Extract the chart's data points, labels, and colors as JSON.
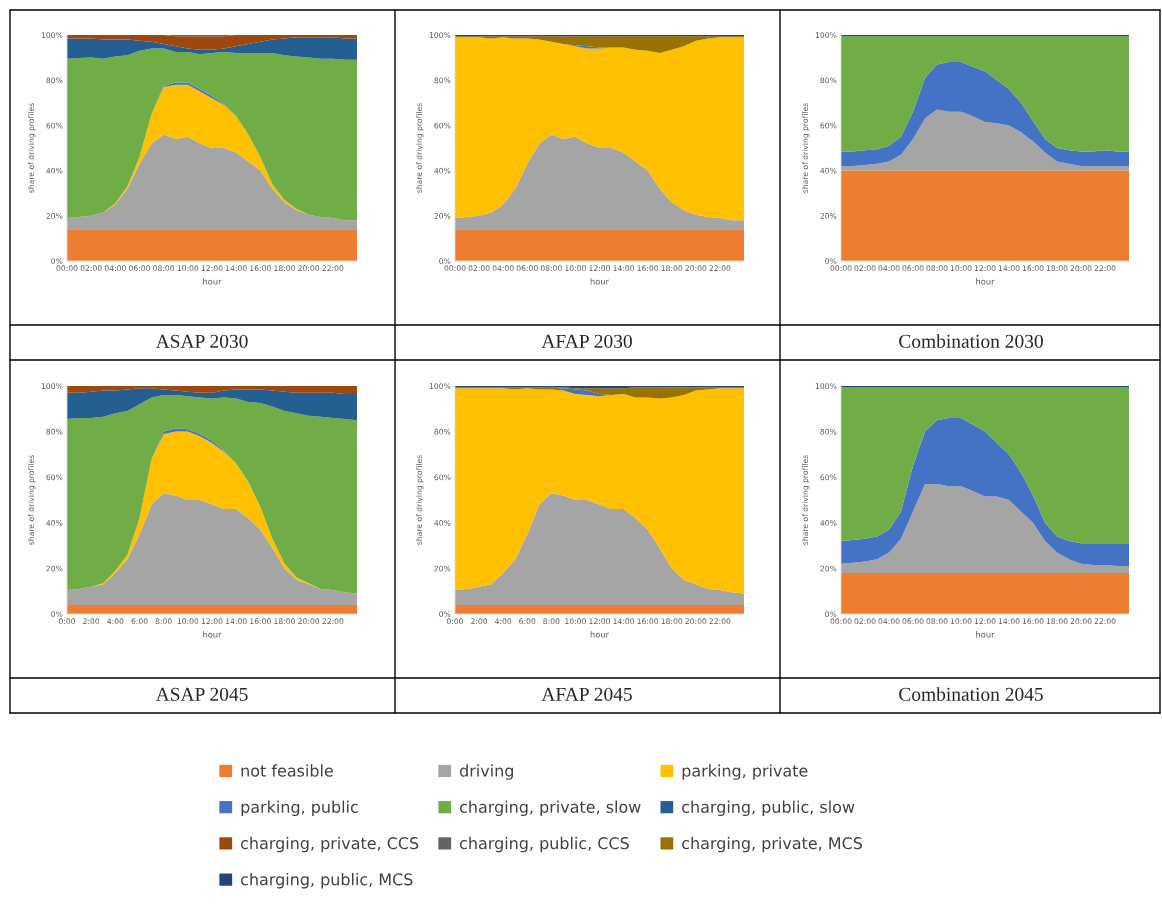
{
  "chart_data": [
    {
      "type": "area",
      "title": "ASAP 2030",
      "xlabel": "hour",
      "ylabel": "share of driving profiles",
      "stacked": true,
      "legend": "bottom",
      "x": [
        0,
        1,
        2,
        3,
        4,
        5,
        6,
        7,
        8,
        9,
        10,
        11,
        12,
        13,
        14,
        15,
        16,
        17,
        18,
        19,
        20,
        21,
        22,
        23,
        24
      ],
      "xlim": [
        0,
        24
      ],
      "xticks": [
        {
          "value": 0,
          "label": "00:00"
        },
        {
          "value": 2,
          "label": "02:00"
        },
        {
          "value": 4,
          "label": "04:00"
        },
        {
          "value": 6,
          "label": "06:00"
        },
        {
          "value": 8,
          "label": "08:00"
        },
        {
          "value": 10,
          "label": "10:00"
        },
        {
          "value": 12,
          "label": "12:00"
        },
        {
          "value": 14,
          "label": "14:00"
        },
        {
          "value": 16,
          "label": "16:00"
        },
        {
          "value": 18,
          "label": "18:00"
        },
        {
          "value": 20,
          "label": "20:00"
        },
        {
          "value": 22,
          "label": "22:00"
        }
      ],
      "ylim": [
        0,
        100
      ],
      "yticks": [
        {
          "value": 0,
          "label": "0%"
        },
        {
          "value": 20,
          "label": "20%"
        },
        {
          "value": 40,
          "label": "40%"
        },
        {
          "value": 60,
          "label": "60%"
        },
        {
          "value": 80,
          "label": "80%"
        },
        {
          "value": 100,
          "label": "100%"
        }
      ],
      "series": [
        {
          "name": "not feasible",
          "color": "#ed7d31",
          "values": [
            14,
            14,
            14,
            14,
            14,
            14,
            14,
            14,
            14,
            14,
            14,
            14,
            14,
            14,
            14,
            14,
            14,
            14,
            14,
            14,
            14,
            14,
            14,
            14,
            14
          ]
        },
        {
          "name": "driving",
          "color": "#a5a5a5",
          "values": [
            5,
            5.5,
            6,
            7.5,
            11,
            18,
            29,
            38,
            42,
            40,
            41,
            38,
            36,
            36,
            34,
            30,
            26,
            18,
            12,
            8.5,
            6.5,
            5.5,
            5,
            4,
            4
          ]
        },
        {
          "name": "parking, private",
          "color": "#ffc000",
          "values": [
            0,
            0,
            0,
            0,
            0.5,
            1,
            3,
            13,
            21,
            24,
            23,
            23,
            22,
            19,
            16,
            12,
            6,
            2,
            1,
            0.5,
            0,
            0,
            0,
            0,
            0
          ]
        },
        {
          "name": "parking, public",
          "color": "#4472c4",
          "values": [
            0,
            0,
            0,
            0,
            0,
            0,
            0,
            0,
            0.5,
            1,
            1,
            1,
            1,
            0.5,
            0,
            0,
            0,
            0,
            0,
            0,
            0,
            0,
            0,
            0,
            0
          ]
        },
        {
          "name": "charging, private, slow",
          "color": "#70ad47",
          "values": [
            70.5,
            70.3,
            70,
            68,
            65,
            58,
            47,
            29,
            16.5,
            13.5,
            13.5,
            15.5,
            19,
            23,
            28,
            36,
            46,
            58,
            64,
            67.5,
            69.5,
            70,
            70.5,
            71,
            71
          ]
        },
        {
          "name": "charging, public, slow",
          "color": "#255e91",
          "values": [
            9,
            8.7,
            8.5,
            8.5,
            7.5,
            7,
            4.5,
            3,
            2,
            2.5,
            1.5,
            2,
            1.5,
            1.5,
            3,
            4,
            5,
            6,
            7.5,
            8.5,
            9,
            9.5,
            9.5,
            9.5,
            9.5
          ]
        },
        {
          "name": "charging, private, CCS",
          "color": "#9e480e",
          "values": [
            1.5,
            1.5,
            1.5,
            2,
            2,
            2,
            2.5,
            3,
            4,
            4.5,
            5.5,
            6,
            6,
            5.5,
            5,
            4,
            3,
            2,
            1.5,
            1,
            1,
            1,
            1,
            1.5,
            1.5
          ]
        },
        {
          "name": "charging, public, CCS",
          "color": "#636363",
          "values": [
            0,
            0,
            0,
            0,
            0,
            0,
            0,
            0,
            0,
            0.5,
            0.5,
            0.5,
            0.5,
            0.5,
            0,
            0,
            0,
            0,
            0,
            0,
            0,
            0,
            0,
            0,
            0
          ]
        }
      ]
    },
    {
      "type": "area",
      "title": "AFAP 2030",
      "xlabel": "hour",
      "ylabel": "share of driving profiles",
      "stacked": true,
      "legend": "bottom",
      "x": [
        0,
        1,
        2,
        3,
        4,
        5,
        6,
        7,
        8,
        9,
        10,
        11,
        12,
        13,
        14,
        15,
        16,
        17,
        18,
        19,
        20,
        21,
        22,
        23,
        24
      ],
      "xlim": [
        0,
        24
      ],
      "xticks": [
        {
          "value": 0,
          "label": "00:00"
        },
        {
          "value": 2,
          "label": "02:00"
        },
        {
          "value": 4,
          "label": "04:00"
        },
        {
          "value": 6,
          "label": "06:00"
        },
        {
          "value": 8,
          "label": "08:00"
        },
        {
          "value": 10,
          "label": "10:00"
        },
        {
          "value": 12,
          "label": "12:00"
        },
        {
          "value": 14,
          "label": "14:00"
        },
        {
          "value": 16,
          "label": "16:00"
        },
        {
          "value": 18,
          "label": "18:00"
        },
        {
          "value": 20,
          "label": "20:00"
        },
        {
          "value": 22,
          "label": "22:00"
        }
      ],
      "ylim": [
        0,
        100
      ],
      "yticks": [
        {
          "value": 0,
          "label": "0%"
        },
        {
          "value": 20,
          "label": "20%"
        },
        {
          "value": 40,
          "label": "40%"
        },
        {
          "value": 60,
          "label": "60%"
        },
        {
          "value": 80,
          "label": "80%"
        },
        {
          "value": 100,
          "label": "100%"
        }
      ],
      "series": [
        {
          "name": "not feasible",
          "color": "#ed7d31",
          "values": [
            14,
            14,
            14,
            14,
            14,
            14,
            14,
            14,
            14,
            14,
            14,
            14,
            14,
            14,
            14,
            14,
            14,
            14,
            14,
            14,
            14,
            14,
            14,
            14,
            14
          ]
        },
        {
          "name": "driving",
          "color": "#a5a5a5",
          "values": [
            5,
            5.5,
            6,
            7.5,
            11,
            18,
            29,
            38,
            42,
            40,
            41,
            38,
            36,
            36,
            34,
            30,
            26,
            18,
            12,
            8.5,
            6.5,
            5.5,
            5,
            4,
            4
          ]
        },
        {
          "name": "parking, private",
          "color": "#ffc000",
          "values": [
            80,
            79.5,
            79,
            77,
            74,
            66.5,
            55.5,
            46,
            41,
            42,
            40,
            42,
            44,
            44.5,
            46.5,
            49.5,
            53,
            60,
            67.5,
            72.5,
            77,
            79,
            80,
            81,
            81
          ]
        },
        {
          "name": "parking, public",
          "color": "#4472c4",
          "values": [
            0,
            0,
            0,
            0,
            0,
            0,
            0,
            0,
            0,
            0,
            0.5,
            1,
            0.5,
            0,
            0,
            0,
            0,
            0,
            0,
            0,
            0,
            0,
            0,
            0,
            0
          ]
        },
        {
          "name": "charging, private, MCS",
          "color": "#997300",
          "values": [
            0.5,
            0.5,
            0.5,
            1,
            0.5,
            1,
            1,
            1.5,
            2.5,
            3.5,
            4,
            4.5,
            5,
            5,
            5,
            6,
            6.5,
            7.5,
            6,
            4.5,
            2,
            1,
            0.5,
            0.5,
            0.5
          ]
        },
        {
          "name": "charging, public, MCS",
          "color": "#264478",
          "values": [
            0.5,
            0.5,
            0.5,
            0.5,
            0.5,
            0.5,
            0.5,
            0.5,
            0.5,
            0.5,
            0.5,
            0.5,
            0.5,
            0.5,
            0.5,
            0.5,
            0.5,
            0.5,
            0.5,
            0.5,
            0.5,
            0.5,
            0.5,
            0.5,
            0.5
          ]
        }
      ]
    },
    {
      "type": "area",
      "title": "Combination 2030",
      "xlabel": "hour",
      "ylabel": "share of driving profiles",
      "stacked": true,
      "legend": "bottom",
      "x": [
        0,
        1,
        2,
        3,
        4,
        5,
        6,
        7,
        8,
        9,
        10,
        11,
        12,
        13,
        14,
        15,
        16,
        17,
        18,
        19,
        20,
        21,
        22,
        23,
        24
      ],
      "xlim": [
        0,
        24
      ],
      "xticks": [
        {
          "value": 0,
          "label": "00:00"
        },
        {
          "value": 2,
          "label": "02:00"
        },
        {
          "value": 4,
          "label": "04:00"
        },
        {
          "value": 6,
          "label": "06:00"
        },
        {
          "value": 8,
          "label": "08:00"
        },
        {
          "value": 10,
          "label": "10:00"
        },
        {
          "value": 12,
          "label": "12:00"
        },
        {
          "value": 14,
          "label": "14:00"
        },
        {
          "value": 16,
          "label": "16:00"
        },
        {
          "value": 18,
          "label": "18:00"
        },
        {
          "value": 20,
          "label": "20:00"
        },
        {
          "value": 22,
          "label": "22:00"
        }
      ],
      "ylim": [
        0,
        100
      ],
      "yticks": [
        {
          "value": 0,
          "label": "0%"
        },
        {
          "value": 20,
          "label": "20%"
        },
        {
          "value": 40,
          "label": "40%"
        },
        {
          "value": 60,
          "label": "60%"
        },
        {
          "value": 80,
          "label": "80%"
        },
        {
          "value": 100,
          "label": "100%"
        }
      ],
      "series": [
        {
          "name": "not feasible",
          "color": "#ed7d31",
          "values": [
            40,
            40,
            40,
            40,
            40,
            40,
            40,
            40,
            40,
            40,
            40,
            40,
            40,
            40,
            40,
            40,
            40,
            40,
            40,
            40,
            40,
            40,
            40,
            40,
            40
          ]
        },
        {
          "name": "driving",
          "color": "#a5a5a5",
          "values": [
            2,
            2,
            2.5,
            3,
            4,
            7,
            14,
            23,
            27,
            26,
            26,
            24,
            21.5,
            21,
            20,
            17,
            13,
            8,
            4,
            3,
            2,
            2,
            2,
            2,
            2
          ]
        },
        {
          "name": "parking, public",
          "color": "#4472c4",
          "values": [
            6.5,
            6.5,
            6.5,
            6.5,
            7,
            8,
            12,
            18,
            20,
            22,
            22,
            22,
            22.5,
            19,
            16,
            13,
            9,
            6,
            6,
            6,
            6.5,
            6.5,
            7,
            6.5,
            6.5
          ]
        },
        {
          "name": "charging, private, slow",
          "color": "#70ad47",
          "values": [
            51,
            51,
            50.5,
            50,
            48.5,
            44.5,
            33.5,
            18.5,
            12.5,
            11.5,
            11.5,
            13.5,
            15.5,
            19.5,
            23.5,
            29.5,
            37.5,
            45.5,
            49.5,
            50.5,
            51,
            51,
            50.5,
            51,
            51
          ]
        },
        {
          "name": "charging, public, MCS",
          "color": "#264478",
          "values": [
            0.5,
            0.5,
            0.5,
            0.5,
            0.5,
            0.5,
            0.5,
            0.5,
            0.5,
            0.5,
            0.5,
            0.5,
            0.5,
            0.5,
            0.5,
            0.5,
            0.5,
            0.5,
            0.5,
            0.5,
            0.5,
            0.5,
            0.5,
            0.5,
            0.5
          ]
        }
      ]
    },
    {
      "type": "area",
      "title": "ASAP 2045",
      "xlabel": "hour",
      "ylabel": "share of driving profiles",
      "stacked": true,
      "legend": "bottom",
      "x": [
        0,
        1,
        2,
        3,
        4,
        5,
        6,
        7,
        8,
        9,
        10,
        11,
        12,
        13,
        14,
        15,
        16,
        17,
        18,
        19,
        20,
        21,
        22,
        23,
        24
      ],
      "xlim": [
        0,
        24
      ],
      "xticks": [
        {
          "value": 0,
          "label": "0:00"
        },
        {
          "value": 2,
          "label": "2:00"
        },
        {
          "value": 4,
          "label": "4:00"
        },
        {
          "value": 6,
          "label": "6:00"
        },
        {
          "value": 8,
          "label": "8:00"
        },
        {
          "value": 10,
          "label": "10:00"
        },
        {
          "value": 12,
          "label": "12:00"
        },
        {
          "value": 14,
          "label": "14:00"
        },
        {
          "value": 16,
          "label": "16:00"
        },
        {
          "value": 18,
          "label": "18:00"
        },
        {
          "value": 20,
          "label": "20:00"
        },
        {
          "value": 22,
          "label": "22:00"
        }
      ],
      "ylim": [
        0,
        100
      ],
      "yticks": [
        {
          "value": 0,
          "label": "0%"
        },
        {
          "value": 20,
          "label": "20%"
        },
        {
          "value": 40,
          "label": "40%"
        },
        {
          "value": 60,
          "label": "60%"
        },
        {
          "value": 80,
          "label": "80%"
        },
        {
          "value": 100,
          "label": "100%"
        }
      ],
      "series": [
        {
          "name": "not feasible",
          "color": "#ed7d31",
          "values": [
            4,
            4,
            4,
            4,
            4,
            4,
            4,
            4,
            4,
            4,
            4,
            4,
            4,
            4,
            4,
            4,
            4,
            4,
            4,
            4,
            4,
            4,
            4,
            4,
            4
          ]
        },
        {
          "name": "driving",
          "color": "#a5a5a5",
          "values": [
            6.5,
            7,
            8,
            9,
            14,
            20,
            31,
            44,
            49,
            48,
            46,
            46,
            44,
            42,
            42,
            38,
            33,
            25,
            16,
            11,
            9,
            7,
            6.5,
            5.5,
            5
          ]
        },
        {
          "name": "parking, private",
          "color": "#ffc000",
          "values": [
            0,
            0,
            0,
            0.5,
            1,
            2,
            7,
            20,
            26,
            28,
            30,
            28,
            27,
            25,
            20,
            16,
            10,
            4,
            2,
            1,
            0.5,
            0,
            0,
            0,
            0
          ]
        },
        {
          "name": "parking, public",
          "color": "#4472c4",
          "values": [
            0,
            0,
            0,
            0,
            0,
            0,
            0,
            0,
            1,
            1.5,
            1,
            1,
            1,
            0.5,
            0,
            0,
            0,
            0,
            0,
            0,
            0,
            0,
            0,
            0,
            0
          ]
        },
        {
          "name": "charging, private, slow",
          "color": "#70ad47",
          "values": [
            75,
            75,
            74,
            73,
            69,
            63,
            50,
            27,
            16,
            14.5,
            14.5,
            16,
            18.5,
            23.5,
            28.5,
            35,
            45.5,
            58,
            67,
            72,
            73.5,
            75.5,
            75.5,
            76,
            76
          ]
        },
        {
          "name": "charging, public, slow",
          "color": "#255e91",
          "values": [
            11.5,
            11,
            11.5,
            11.5,
            10,
            9.5,
            7,
            4,
            2.5,
            2,
            2,
            2,
            2.5,
            3,
            4,
            5.5,
            6,
            7,
            8.5,
            9,
            10,
            10.5,
            11,
            11,
            11.5
          ]
        },
        {
          "name": "charging, private, CCS",
          "color": "#9e480e",
          "values": [
            3,
            3,
            2.5,
            2,
            2,
            1.5,
            1,
            1,
            1.5,
            2,
            2.5,
            3,
            3,
            2,
            1.5,
            1.5,
            1.5,
            2,
            2.5,
            3,
            3,
            3,
            3,
            3.5,
            3.5
          ]
        }
      ]
    },
    {
      "type": "area",
      "title": "AFAP 2045",
      "xlabel": "hour",
      "ylabel": "share of driving profiles",
      "stacked": true,
      "legend": "bottom",
      "x": [
        0,
        1,
        2,
        3,
        4,
        5,
        6,
        7,
        8,
        9,
        10,
        11,
        12,
        13,
        14,
        15,
        16,
        17,
        18,
        19,
        20,
        21,
        22,
        23,
        24
      ],
      "xlim": [
        0,
        24
      ],
      "xticks": [
        {
          "value": 0,
          "label": "0:00"
        },
        {
          "value": 2,
          "label": "2:00"
        },
        {
          "value": 4,
          "label": "4:00"
        },
        {
          "value": 6,
          "label": "6:00"
        },
        {
          "value": 8,
          "label": "8:00"
        },
        {
          "value": 10,
          "label": "10:00"
        },
        {
          "value": 12,
          "label": "12:00"
        },
        {
          "value": 14,
          "label": "14:00"
        },
        {
          "value": 16,
          "label": "16:00"
        },
        {
          "value": 18,
          "label": "18:00"
        },
        {
          "value": 20,
          "label": "20:00"
        },
        {
          "value": 22,
          "label": "22:00"
        }
      ],
      "ylim": [
        0,
        100
      ],
      "yticks": [
        {
          "value": 0,
          "label": "0%"
        },
        {
          "value": 20,
          "label": "20%"
        },
        {
          "value": 40,
          "label": "40%"
        },
        {
          "value": 60,
          "label": "60%"
        },
        {
          "value": 80,
          "label": "80%"
        },
        {
          "value": 100,
          "label": "100%"
        }
      ],
      "series": [
        {
          "name": "not feasible",
          "color": "#ed7d31",
          "values": [
            4,
            4,
            4,
            4,
            4,
            4,
            4,
            4,
            4,
            4,
            4,
            4,
            4,
            4,
            4,
            4,
            4,
            4,
            4,
            4,
            4,
            4,
            4,
            4,
            4
          ]
        },
        {
          "name": "driving",
          "color": "#a5a5a5",
          "values": [
            6.5,
            7,
            8,
            9,
            14,
            20,
            31,
            44,
            49,
            48,
            46,
            46,
            44,
            42,
            42,
            38,
            33,
            25,
            16,
            11,
            9,
            7,
            6.5,
            5.5,
            5
          ]
        },
        {
          "name": "parking, private",
          "color": "#ffc000",
          "values": [
            88.5,
            88,
            87,
            86,
            81,
            74.5,
            64,
            50.5,
            45.5,
            46,
            46.5,
            46,
            47.5,
            50,
            50.5,
            53,
            58,
            65.5,
            75,
            81,
            85,
            87.5,
            88.5,
            89.5,
            90
          ]
        },
        {
          "name": "parking, public",
          "color": "#4472c4",
          "values": [
            0,
            0,
            0,
            0,
            0,
            0,
            0,
            0,
            0,
            1,
            2,
            2,
            1,
            0,
            0,
            0,
            0,
            0,
            0,
            0,
            0,
            0,
            0,
            0,
            0
          ]
        },
        {
          "name": "charging, private, MCS",
          "color": "#997300",
          "values": [
            0.5,
            0.5,
            0.5,
            0.5,
            0.5,
            1,
            0.5,
            1,
            1,
            0.5,
            0.5,
            1,
            2.5,
            3,
            2.5,
            4.5,
            4.5,
            5,
            4.5,
            3.5,
            1.5,
            1,
            0.5,
            0.5,
            0.5
          ]
        },
        {
          "name": "charging, public, MCS",
          "color": "#264478",
          "values": [
            0.5,
            0.5,
            0.5,
            0.5,
            0.5,
            0.5,
            0.5,
            0.5,
            0.5,
            0.5,
            1,
            1,
            1,
            1,
            1,
            0.5,
            0.5,
            0.5,
            0.5,
            0.5,
            0.5,
            0.5,
            0.5,
            0.5,
            0.5
          ]
        }
      ]
    },
    {
      "type": "area",
      "title": "Combination 2045",
      "xlabel": "hour",
      "ylabel": "share of driving profiles",
      "stacked": true,
      "legend": "bottom",
      "x": [
        0,
        1,
        2,
        3,
        4,
        5,
        6,
        7,
        8,
        9,
        10,
        11,
        12,
        13,
        14,
        15,
        16,
        17,
        18,
        19,
        20,
        21,
        22,
        23,
        24
      ],
      "xlim": [
        0,
        24
      ],
      "xticks": [
        {
          "value": 0,
          "label": "00:00"
        },
        {
          "value": 2,
          "label": "02:00"
        },
        {
          "value": 4,
          "label": "04:00"
        },
        {
          "value": 6,
          "label": "06:00"
        },
        {
          "value": 8,
          "label": "08:00"
        },
        {
          "value": 10,
          "label": "10:00"
        },
        {
          "value": 12,
          "label": "12:00"
        },
        {
          "value": 14,
          "label": "14:00"
        },
        {
          "value": 16,
          "label": "16:00"
        },
        {
          "value": 18,
          "label": "18:00"
        },
        {
          "value": 20,
          "label": "20:00"
        },
        {
          "value": 22,
          "label": "22:00"
        }
      ],
      "ylim": [
        0,
        100
      ],
      "yticks": [
        {
          "value": 0,
          "label": "0%"
        },
        {
          "value": 20,
          "label": "20%"
        },
        {
          "value": 40,
          "label": "40%"
        },
        {
          "value": 60,
          "label": "60%"
        },
        {
          "value": 80,
          "label": "80%"
        },
        {
          "value": 100,
          "label": "100%"
        }
      ],
      "series": [
        {
          "name": "not feasible",
          "color": "#ed7d31",
          "values": [
            18,
            18,
            18,
            18,
            18,
            18,
            18,
            18,
            18,
            18,
            18,
            18,
            18,
            18,
            18,
            18,
            18,
            18,
            18,
            18,
            18,
            18,
            18,
            18,
            18
          ]
        },
        {
          "name": "driving",
          "color": "#a5a5a5",
          "values": [
            4,
            4.5,
            5,
            6,
            9,
            15,
            27,
            39,
            39,
            38,
            38,
            36,
            33.5,
            33.5,
            32,
            27,
            22,
            14,
            9,
            6,
            4,
            3.5,
            3.5,
            3,
            3
          ]
        },
        {
          "name": "parking, public",
          "color": "#4472c4",
          "values": [
            10,
            10,
            10,
            10,
            10,
            12,
            20,
            23,
            28,
            30,
            30,
            29,
            28.5,
            23.5,
            20,
            17,
            12,
            8,
            7,
            8,
            9,
            9.5,
            9.5,
            10,
            10
          ]
        },
        {
          "name": "charging, private, slow",
          "color": "#70ad47",
          "values": [
            67.5,
            67,
            66.5,
            65.5,
            62.5,
            54.5,
            34.5,
            19.5,
            14.5,
            13.5,
            13.5,
            16.5,
            19.5,
            24.5,
            29.5,
            37.5,
            47.5,
            59.5,
            65.5,
            67.5,
            68.5,
            68.5,
            68.5,
            68.5,
            68.5
          ]
        },
        {
          "name": "charging, public, MCS",
          "color": "#264478",
          "values": [
            0.5,
            0.5,
            0.5,
            0.5,
            0.5,
            0.5,
            0.5,
            0.5,
            0.5,
            0.5,
            0.5,
            0.5,
            0.5,
            0.5,
            0.5,
            0.5,
            0.5,
            0.5,
            0.5,
            0.5,
            0.5,
            0.5,
            0.5,
            0.5,
            0.5
          ]
        }
      ]
    }
  ]
}
